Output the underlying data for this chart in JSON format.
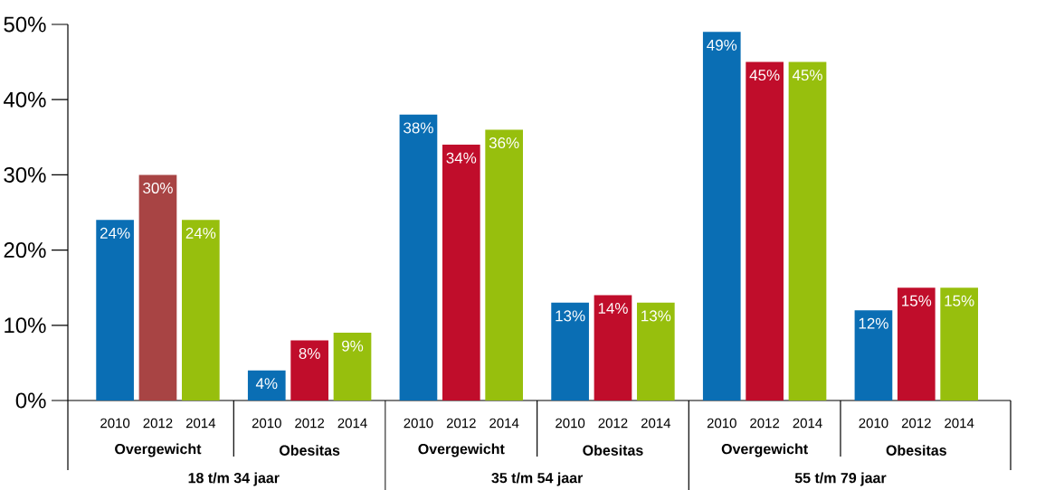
{
  "chart_data": {
    "type": "bar",
    "categories": [
      "2010",
      "2012",
      "2014",
      "2010",
      "2012",
      "2014",
      "2010",
      "2012",
      "2014",
      "2010",
      "2012",
      "2014",
      "2010",
      "2012",
      "2014",
      "2010",
      "2012",
      "2014"
    ],
    "values": [
      24,
      30,
      24,
      4,
      8,
      9,
      38,
      34,
      36,
      13,
      14,
      13,
      49,
      45,
      45,
      12,
      15,
      15
    ],
    "value_labels": [
      "24%",
      "30%",
      "24%",
      "4%",
      "8%",
      "9%",
      "38%",
      "34%",
      "36%",
      "13%",
      "14%",
      "13%",
      "49%",
      "45%",
      "45%",
      "12%",
      "15%",
      "15%"
    ],
    "colors": [
      "#0a6eb4",
      "#a84444",
      "#97bf0d",
      "#0a6eb4",
      "#c00d2b",
      "#97bf0d",
      "#0a6eb4",
      "#c00d2b",
      "#97bf0d",
      "#0a6eb4",
      "#c00d2b",
      "#97bf0d",
      "#0a6eb4",
      "#c00d2b",
      "#97bf0d",
      "#0a6eb4",
      "#c00d2b",
      "#97bf0d"
    ],
    "ylim": [
      0,
      50
    ],
    "yticks": [
      {
        "value": 0,
        "label": "0%"
      },
      {
        "value": 10,
        "label": "10%"
      },
      {
        "value": 20,
        "label": "20%"
      },
      {
        "value": 30,
        "label": "30%"
      },
      {
        "value": 40,
        "label": "40%"
      },
      {
        "value": 50,
        "label": "50%"
      }
    ],
    "annotations": [
      "Overgewicht",
      "Obesitas",
      "Overgewicht",
      "Obesitas",
      "Overgewicht",
      "Obesitas",
      "18 t/m 34 jaar",
      "35 t/m 54 jaar",
      "55 t/m 79 jaar"
    ]
  }
}
